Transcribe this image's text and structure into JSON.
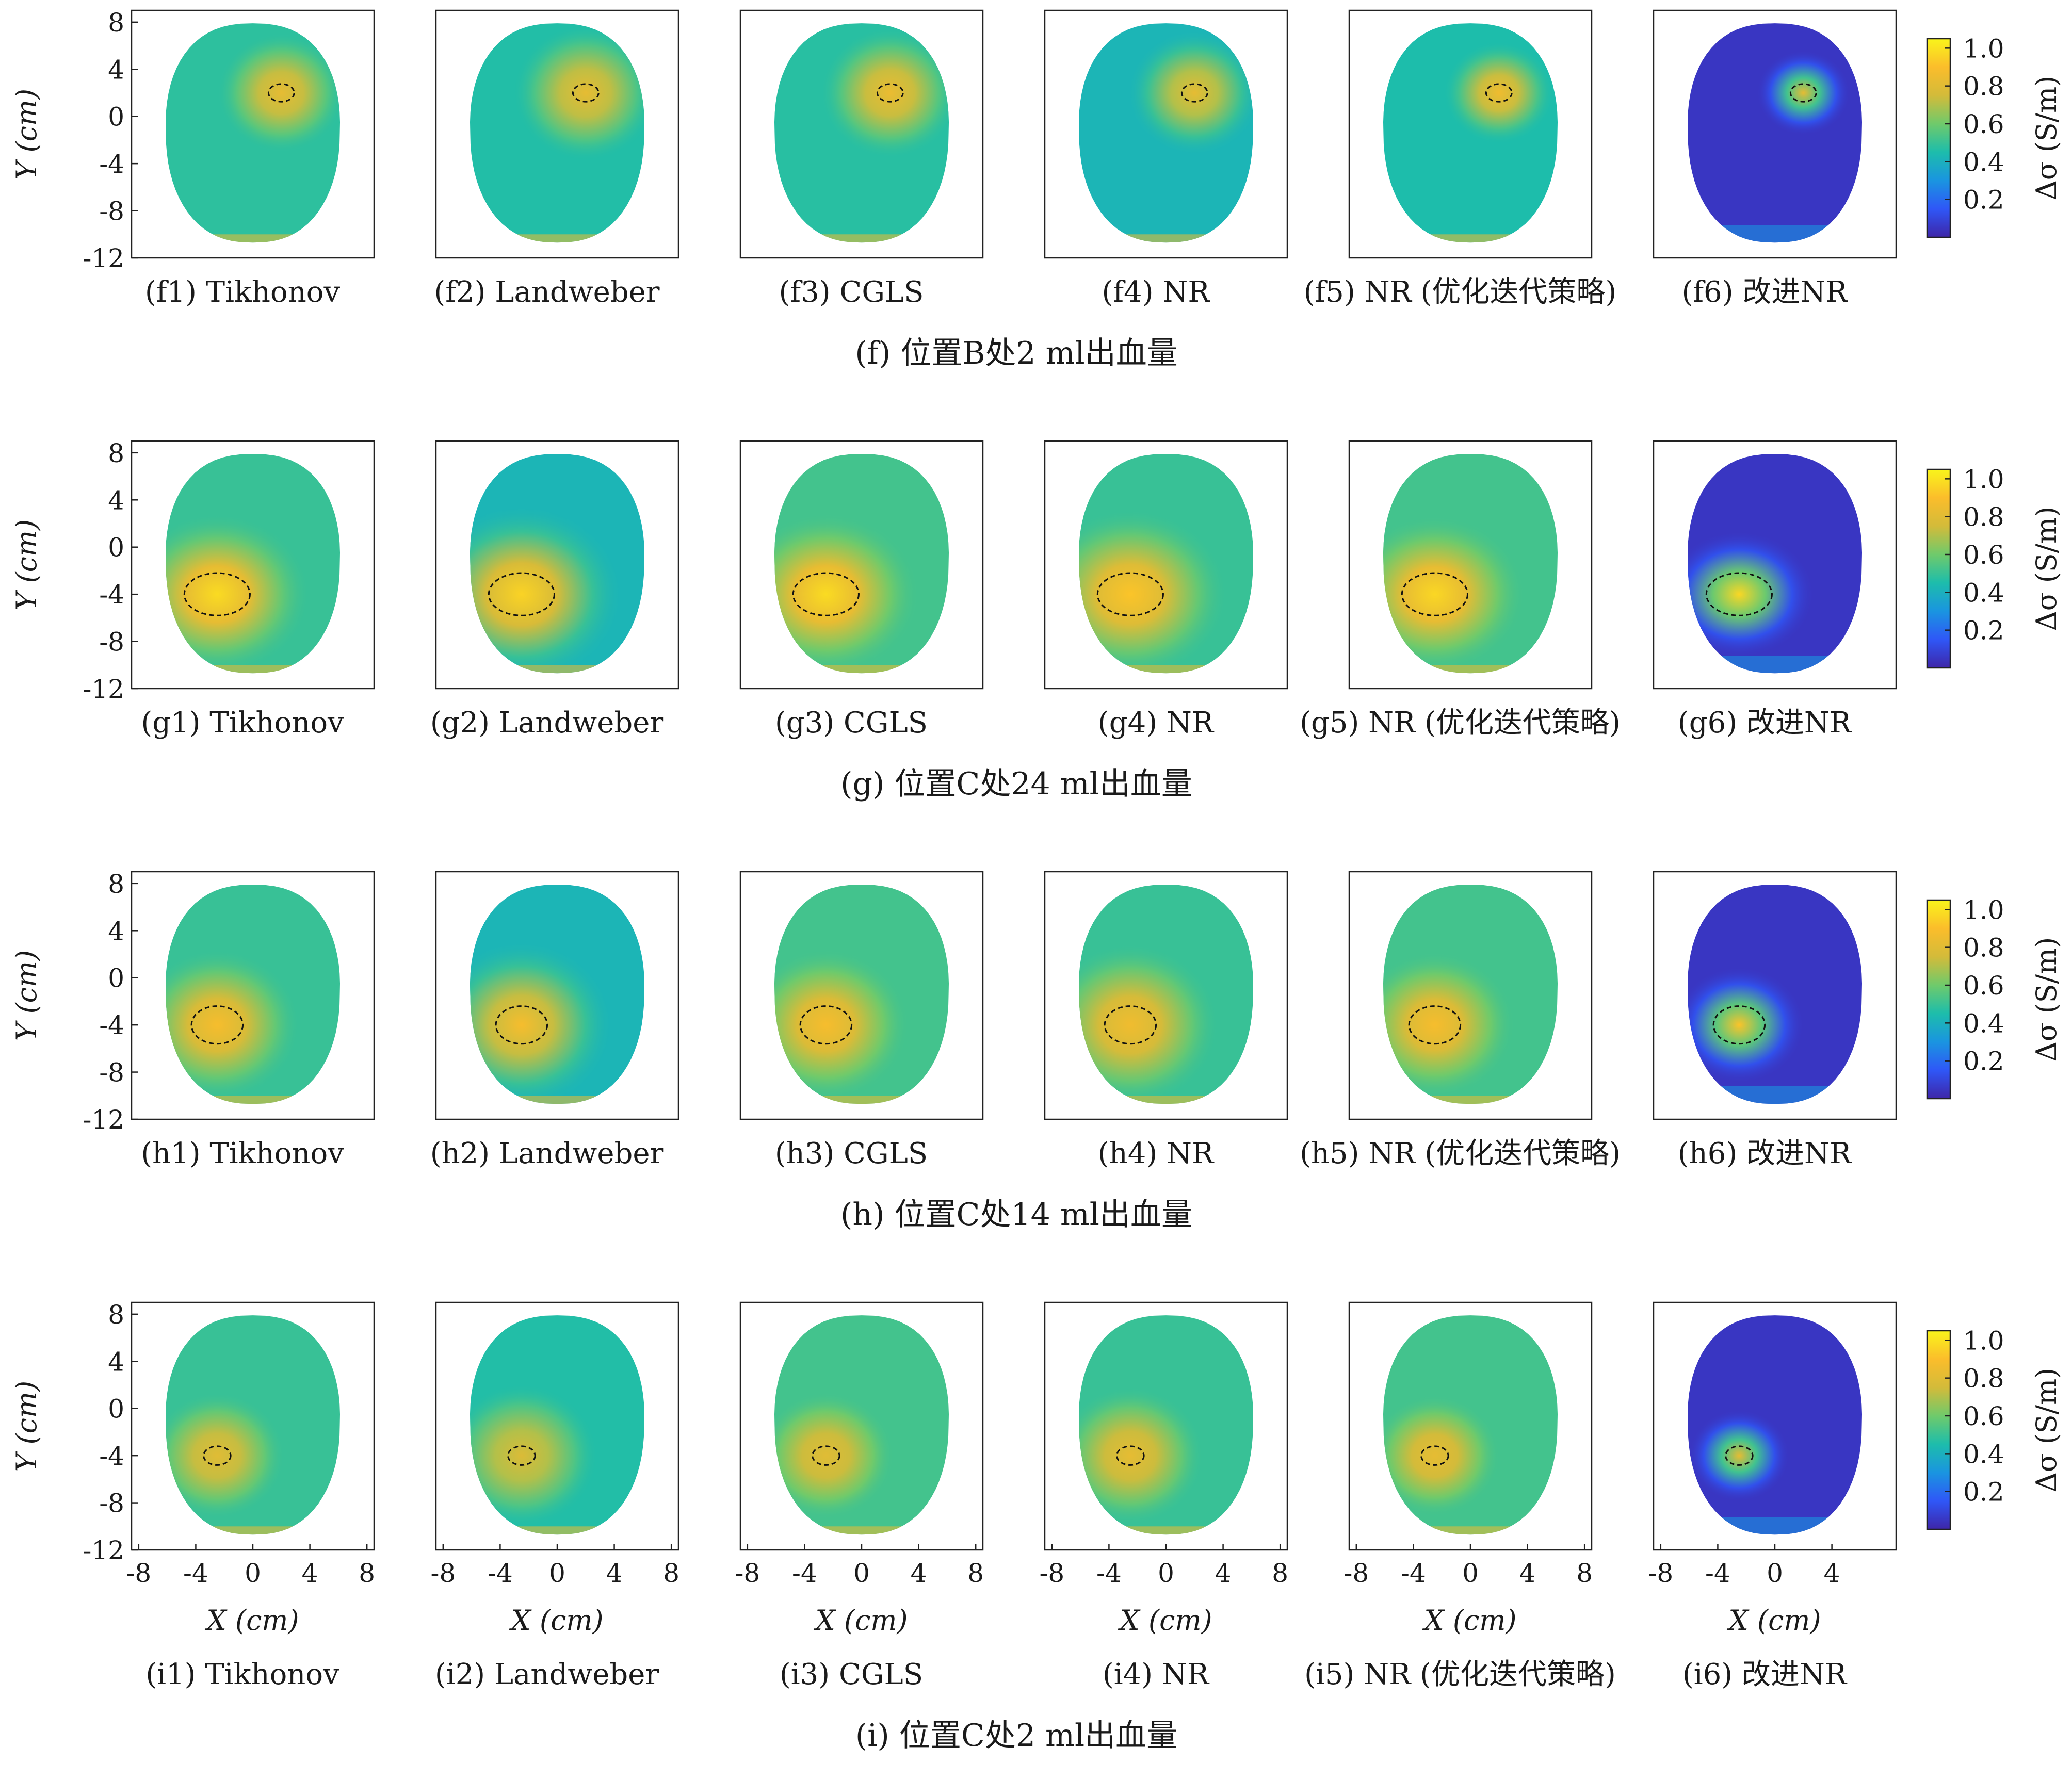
{
  "figure": {
    "ylabel": "Y (cm)",
    "xlabel": "X (cm)",
    "colorbar": {
      "label": "Δσ (S/m)",
      "ticks": [
        "1.0",
        "0.8",
        "0.6",
        "0.4",
        "0.2"
      ],
      "tick_values": [
        1.0,
        0.8,
        0.6,
        0.4,
        0.2
      ],
      "range": [
        0.0,
        1.05
      ],
      "colormap": [
        "#3e26a8",
        "#2f57f7",
        "#1a95e0",
        "#1dbdab",
        "#6fca6b",
        "#d3bb3a",
        "#fbbd2b",
        "#f9f51b"
      ]
    },
    "y_ticks": [
      "8",
      "4",
      "0",
      "-4",
      "-8",
      "-12"
    ],
    "x_ticks": [
      "-8",
      "-4",
      "0",
      "4",
      "8"
    ],
    "x_ticks_last": [
      "-8",
      "-4",
      "0",
      "4"
    ]
  },
  "chart_data": {
    "type": "heatmap",
    "xlim": [
      -8.5,
      8.5
    ],
    "ylim": [
      -12,
      9
    ],
    "rows": [
      {
        "id": "f",
        "caption": "(f) 位置B处2 ml出血量",
        "target": {
          "x": 2,
          "y": 2,
          "rx": 0.9,
          "ry": 0.75
        },
        "panels": [
          {
            "caption": "(f1) Tikhonov",
            "style": "smooth",
            "background_level": 0.48,
            "peak_level": 0.82,
            "halo_width": 3.6
          },
          {
            "caption": "(f2) Landweber",
            "style": "smooth",
            "background_level": 0.46,
            "peak_level": 0.82,
            "halo_width": 4.2
          },
          {
            "caption": "(f3) CGLS",
            "style": "smooth",
            "background_level": 0.47,
            "peak_level": 0.84,
            "halo_width": 4.0
          },
          {
            "caption": "(f4) NR",
            "style": "smooth",
            "background_level": 0.42,
            "peak_level": 0.82,
            "halo_width": 3.8
          },
          {
            "caption": "(f5) NR (优化迭代策略)",
            "style": "smooth",
            "background_level": 0.45,
            "peak_level": 0.86,
            "halo_width": 3.0
          },
          {
            "caption": "(f6) 改进NR",
            "style": "sparse",
            "background_level": 0.05,
            "peak_level": 0.82,
            "halo_width": 2.4
          }
        ]
      },
      {
        "id": "g",
        "caption": "(g) 位置C处24 ml出血量",
        "target": {
          "x": -2.5,
          "y": -4,
          "rx": 2.3,
          "ry": 1.8
        },
        "panels": [
          {
            "caption": "(g1) Tikhonov",
            "style": "smooth",
            "background_level": 0.5,
            "peak_level": 0.98,
            "halo_width": 4.2
          },
          {
            "caption": "(g2) Landweber",
            "style": "smooth",
            "background_level": 0.42,
            "peak_level": 0.96,
            "halo_width": 4.8
          },
          {
            "caption": "(g3) CGLS",
            "style": "smooth",
            "background_level": 0.52,
            "peak_level": 0.98,
            "halo_width": 4.2
          },
          {
            "caption": "(g4) NR",
            "style": "smooth",
            "background_level": 0.5,
            "peak_level": 0.92,
            "halo_width": 4.5
          },
          {
            "caption": "(g5) NR (优化迭代策略)",
            "style": "smooth",
            "background_level": 0.52,
            "peak_level": 0.97,
            "halo_width": 4.0
          },
          {
            "caption": "(g6) 改进NR",
            "style": "sparse",
            "background_level": 0.05,
            "peak_level": 0.97,
            "halo_width": 3.0
          }
        ]
      },
      {
        "id": "h",
        "caption": "(h) 位置C处14 ml出血量",
        "target": {
          "x": -2.5,
          "y": -4,
          "rx": 1.8,
          "ry": 1.6
        },
        "panels": [
          {
            "caption": "(h1) Tikhonov",
            "style": "smooth",
            "background_level": 0.5,
            "peak_level": 0.88,
            "halo_width": 4.0
          },
          {
            "caption": "(h2) Landweber",
            "style": "smooth",
            "background_level": 0.42,
            "peak_level": 0.88,
            "halo_width": 4.6
          },
          {
            "caption": "(h3) CGLS",
            "style": "smooth",
            "background_level": 0.52,
            "peak_level": 0.88,
            "halo_width": 4.0
          },
          {
            "caption": "(h4) NR",
            "style": "smooth",
            "background_level": 0.5,
            "peak_level": 0.86,
            "halo_width": 4.4
          },
          {
            "caption": "(h5) NR (优化迭代策略)",
            "style": "smooth",
            "background_level": 0.52,
            "peak_level": 0.88,
            "halo_width": 3.8
          },
          {
            "caption": "(h6) 改进NR",
            "style": "sparse",
            "background_level": 0.05,
            "peak_level": 0.92,
            "halo_width": 2.8
          }
        ]
      },
      {
        "id": "i",
        "caption": "(i) 位置C处2 ml出血量",
        "target": {
          "x": -2.5,
          "y": -4,
          "rx": 0.95,
          "ry": 0.8
        },
        "panels": [
          {
            "caption": "(i1) Tikhonov",
            "style": "smooth",
            "background_level": 0.5,
            "peak_level": 0.8,
            "halo_width": 3.8
          },
          {
            "caption": "(i2) Landweber",
            "style": "smooth",
            "background_level": 0.46,
            "peak_level": 0.78,
            "halo_width": 4.4
          },
          {
            "caption": "(i3) CGLS",
            "style": "smooth",
            "background_level": 0.52,
            "peak_level": 0.8,
            "halo_width": 3.8
          },
          {
            "caption": "(i4) NR",
            "style": "smooth",
            "background_level": 0.5,
            "peak_level": 0.82,
            "halo_width": 4.2
          },
          {
            "caption": "(i5) NR (优化迭代策略)",
            "style": "smooth",
            "background_level": 0.52,
            "peak_level": 0.82,
            "halo_width": 3.6
          },
          {
            "caption": "(i6) 改进NR",
            "style": "sparse",
            "background_level": 0.05,
            "peak_level": 0.82,
            "halo_width": 2.6
          }
        ]
      }
    ]
  }
}
